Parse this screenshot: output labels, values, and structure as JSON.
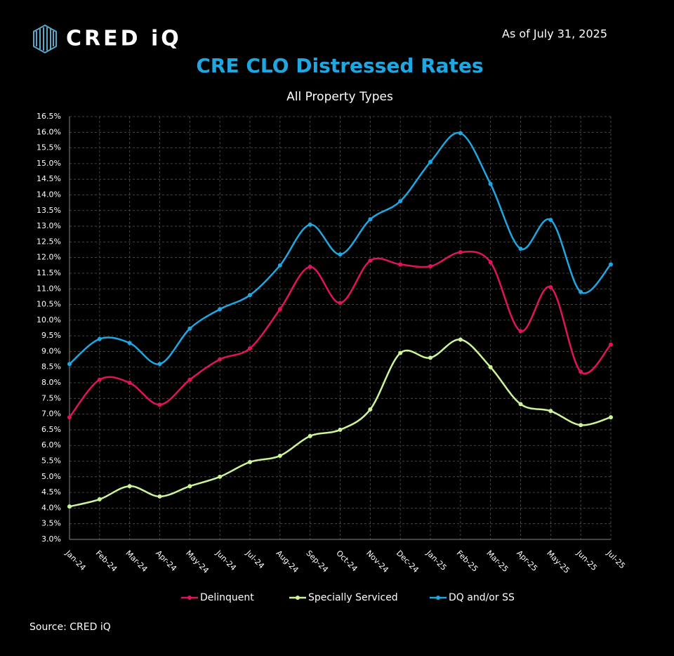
{
  "brand": "CRED iQ",
  "as_of": "As of July 31, 2025",
  "source": "Source:  CRED iQ",
  "chart_data": {
    "type": "line",
    "title": "CRE CLO Distressed Rates",
    "subtitle": "All Property Types",
    "categories": [
      "Jan-24",
      "Feb-24",
      "Mar-24",
      "Apr-24",
      "May-24",
      "Jun-24",
      "Jul-24",
      "Aug-24",
      "Sep-24",
      "Oct-24",
      "Nov-24",
      "Dec-24",
      "Jan-25",
      "Feb-25",
      "Mar-25",
      "Apr-25",
      "May-25",
      "Jun-25",
      "Jul-25"
    ],
    "series": [
      {
        "name": "Delinquent",
        "color": "#e0135f",
        "values": [
          6.9,
          8.1,
          8.0,
          7.3,
          8.1,
          8.75,
          9.1,
          10.35,
          11.7,
          10.55,
          11.9,
          11.78,
          11.72,
          12.17,
          11.85,
          9.65,
          11.05,
          8.35,
          9.22
        ]
      },
      {
        "name": "Specially Serviced",
        "color": "#ccf59a",
        "values": [
          4.05,
          4.28,
          4.7,
          4.37,
          4.7,
          5.0,
          5.47,
          5.67,
          6.3,
          6.5,
          7.15,
          8.95,
          8.8,
          9.38,
          8.5,
          7.32,
          7.1,
          6.65,
          6.9
        ]
      },
      {
        "name": "DQ and/or SS",
        "color": "#1ea7e0",
        "values": [
          8.6,
          9.4,
          9.27,
          8.6,
          9.73,
          10.35,
          10.8,
          11.75,
          13.05,
          12.1,
          13.22,
          13.8,
          15.05,
          15.97,
          14.35,
          12.28,
          13.2,
          10.9,
          11.78
        ]
      }
    ],
    "ylim": [
      3.0,
      16.5
    ],
    "yticks": [
      {
        "value": 3.0,
        "label": "3.0%"
      },
      {
        "value": 3.5,
        "label": "3.5%"
      },
      {
        "value": 4.0,
        "label": "4.0%"
      },
      {
        "value": 4.5,
        "label": "4.5%"
      },
      {
        "value": 5.0,
        "label": "5.0%"
      },
      {
        "value": 5.5,
        "label": "5.5%"
      },
      {
        "value": 6.0,
        "label": "6.0%"
      },
      {
        "value": 6.5,
        "label": "6.5%"
      },
      {
        "value": 7.0,
        "label": "7.0%"
      },
      {
        "value": 7.5,
        "label": "7.5%"
      },
      {
        "value": 8.0,
        "label": "8.0%"
      },
      {
        "value": 8.5,
        "label": "8.5%"
      },
      {
        "value": 9.0,
        "label": "9.0%"
      },
      {
        "value": 9.5,
        "label": "9.5%"
      },
      {
        "value": 10.0,
        "label": "10.0%"
      },
      {
        "value": 10.5,
        "label": "10.5%"
      },
      {
        "value": 11.0,
        "label": "11.0%"
      },
      {
        "value": 11.5,
        "label": "11.5%"
      },
      {
        "value": 12.0,
        "label": "12.0%"
      },
      {
        "value": 12.5,
        "label": "12.5%"
      },
      {
        "value": 13.0,
        "label": "13.0%"
      },
      {
        "value": 13.5,
        "label": "13.5%"
      },
      {
        "value": 14.0,
        "label": "14.0%"
      },
      {
        "value": 14.5,
        "label": "14.5%"
      },
      {
        "value": 15.0,
        "label": "15.0%"
      },
      {
        "value": 15.5,
        "label": "15.5%"
      },
      {
        "value": 16.0,
        "label": "16.0%"
      },
      {
        "value": 16.5,
        "label": "16.5%"
      }
    ],
    "grid": true,
    "legend": "bottom"
  }
}
